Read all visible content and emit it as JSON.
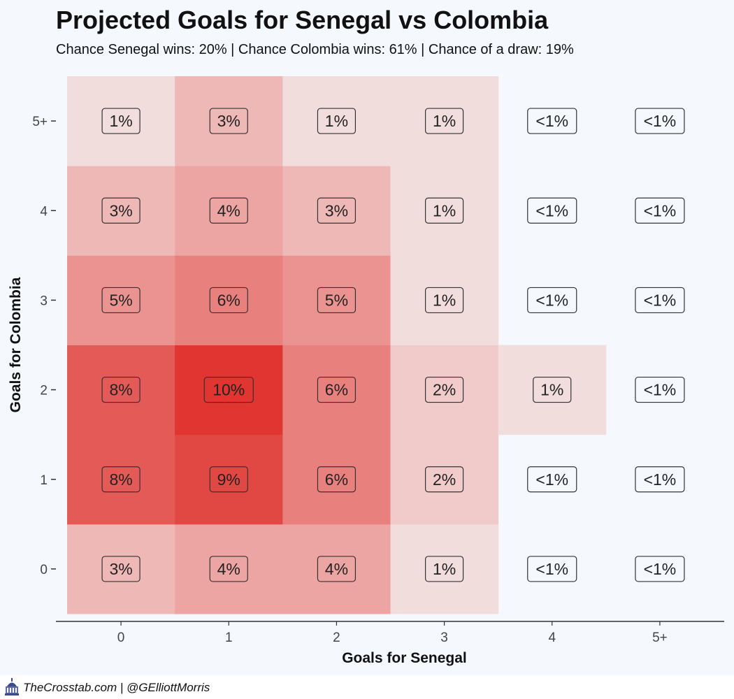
{
  "header": {
    "title": "Projected Goals for Senegal vs Colombia",
    "subtitle": "Chance Senegal wins: 20% | Chance Colombia wins: 61% | Chance of a draw: 19%"
  },
  "footer": {
    "credit": "TheCrosstab.com | @GElliottMorris",
    "icon": "capitol-icon"
  },
  "colors": {
    "background": "#f5f9fd",
    "low": "#f4f0f0",
    "high": "#e03530",
    "label_border": "#333333",
    "axis": "#333333"
  },
  "chart_data": {
    "type": "heatmap",
    "xlabel": "Goals for Senegal",
    "ylabel": "Goals for Colombia",
    "x_categories": [
      "0",
      "1",
      "2",
      "3",
      "4",
      "5+"
    ],
    "y_categories": [
      "0",
      "1",
      "2",
      "3",
      "4",
      "5+"
    ],
    "grid": false,
    "legend": "none",
    "cells": [
      {
        "x": "0",
        "y": "0",
        "value": 3,
        "label": "3%"
      },
      {
        "x": "1",
        "y": "0",
        "value": 4,
        "label": "4%"
      },
      {
        "x": "2",
        "y": "0",
        "value": 4,
        "label": "4%"
      },
      {
        "x": "3",
        "y": "0",
        "value": 1,
        "label": "1%"
      },
      {
        "x": "4",
        "y": "0",
        "value": 0,
        "label": "<1%"
      },
      {
        "x": "5+",
        "y": "0",
        "value": 0,
        "label": "<1%"
      },
      {
        "x": "0",
        "y": "1",
        "value": 8,
        "label": "8%"
      },
      {
        "x": "1",
        "y": "1",
        "value": 9,
        "label": "9%"
      },
      {
        "x": "2",
        "y": "1",
        "value": 6,
        "label": "6%"
      },
      {
        "x": "3",
        "y": "1",
        "value": 2,
        "label": "2%"
      },
      {
        "x": "4",
        "y": "1",
        "value": 0,
        "label": "<1%"
      },
      {
        "x": "5+",
        "y": "1",
        "value": 0,
        "label": "<1%"
      },
      {
        "x": "0",
        "y": "2",
        "value": 8,
        "label": "8%"
      },
      {
        "x": "1",
        "y": "2",
        "value": 10,
        "label": "10%"
      },
      {
        "x": "2",
        "y": "2",
        "value": 6,
        "label": "6%"
      },
      {
        "x": "3",
        "y": "2",
        "value": 2,
        "label": "2%"
      },
      {
        "x": "4",
        "y": "2",
        "value": 1,
        "label": "1%"
      },
      {
        "x": "5+",
        "y": "2",
        "value": 0,
        "label": "<1%"
      },
      {
        "x": "0",
        "y": "3",
        "value": 5,
        "label": "5%"
      },
      {
        "x": "1",
        "y": "3",
        "value": 6,
        "label": "6%"
      },
      {
        "x": "2",
        "y": "3",
        "value": 5,
        "label": "5%"
      },
      {
        "x": "3",
        "y": "3",
        "value": 1,
        "label": "1%"
      },
      {
        "x": "4",
        "y": "3",
        "value": 0,
        "label": "<1%"
      },
      {
        "x": "5+",
        "y": "3",
        "value": 0,
        "label": "<1%"
      },
      {
        "x": "0",
        "y": "4",
        "value": 3,
        "label": "3%"
      },
      {
        "x": "1",
        "y": "4",
        "value": 4,
        "label": "4%"
      },
      {
        "x": "2",
        "y": "4",
        "value": 3,
        "label": "3%"
      },
      {
        "x": "3",
        "y": "4",
        "value": 1,
        "label": "1%"
      },
      {
        "x": "4",
        "y": "4",
        "value": 0,
        "label": "<1%"
      },
      {
        "x": "5+",
        "y": "4",
        "value": 0,
        "label": "<1%"
      },
      {
        "x": "0",
        "y": "5+",
        "value": 1,
        "label": "1%"
      },
      {
        "x": "1",
        "y": "5+",
        "value": 3,
        "label": "3%"
      },
      {
        "x": "2",
        "y": "5+",
        "value": 1,
        "label": "1%"
      },
      {
        "x": "3",
        "y": "5+",
        "value": 1,
        "label": "1%"
      },
      {
        "x": "4",
        "y": "5+",
        "value": 0,
        "label": "<1%"
      },
      {
        "x": "5+",
        "y": "5+",
        "value": 0,
        "label": "<1%"
      }
    ]
  }
}
